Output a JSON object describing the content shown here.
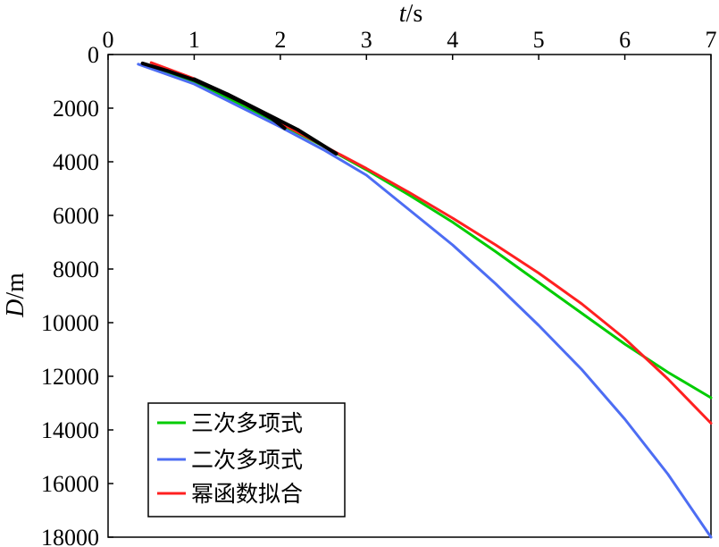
{
  "chart_data": {
    "type": "line",
    "xlabel_var": "t",
    "xlabel_unit": "/s",
    "ylabel_var": "D",
    "ylabel_unit": "/m",
    "xlim": [
      0,
      7
    ],
    "ylim": [
      0,
      18000
    ],
    "y_inverted": true,
    "x_axis_position": "top",
    "grid": false,
    "legend_position": "bottom-left",
    "x_ticks": [
      0,
      1,
      2,
      3,
      4,
      5,
      6,
      7
    ],
    "y_ticks": [
      0,
      2000,
      4000,
      6000,
      8000,
      10000,
      12000,
      14000,
      16000,
      18000
    ],
    "series": [
      {
        "name": "三次多项式",
        "color": "#00cc00",
        "x": [
          0.4,
          1.0,
          1.5,
          2.0,
          2.5,
          3.0,
          3.5,
          4.0,
          4.5,
          5.0,
          5.5,
          6.0,
          6.5,
          7.0
        ],
        "y": [
          340,
          1050,
          1800,
          2600,
          3420,
          4300,
          5250,
          6250,
          7350,
          8500,
          9650,
          10800,
          11850,
          12800
        ]
      },
      {
        "name": "二次多项式",
        "color": "#4d6df3",
        "x": [
          0.35,
          1.0,
          1.5,
          2.0,
          2.5,
          3.0,
          3.5,
          4.0,
          4.5,
          5.0,
          5.5,
          6.0,
          6.5,
          7.0
        ],
        "y": [
          360,
          1100,
          1900,
          2700,
          3550,
          4500,
          5800,
          7100,
          8550,
          10100,
          11750,
          13600,
          15650,
          18000
        ]
      },
      {
        "name": "幂函数拟合",
        "color": "#ff2020",
        "x": [
          0.5,
          1.0,
          1.5,
          2.0,
          2.5,
          3.0,
          3.5,
          4.0,
          4.5,
          5.0,
          5.5,
          6.0,
          6.5,
          7.0
        ],
        "y": [
          300,
          900,
          1700,
          2550,
          3400,
          4250,
          5150,
          6100,
          7100,
          8150,
          9300,
          10600,
          12100,
          13750
        ]
      },
      {
        "name": "",
        "color": "#000000",
        "x": [
          0.4,
          0.7,
          1.0,
          1.3,
          1.6,
          1.9,
          2.05
        ],
        "y": [
          330,
          620,
          950,
          1380,
          1850,
          2380,
          2750
        ]
      },
      {
        "name": "",
        "color": "#000000",
        "x": [
          1.0,
          1.4,
          1.8,
          2.2,
          2.6,
          2.65
        ],
        "y": [
          920,
          1500,
          2150,
          2800,
          3600,
          3700
        ]
      }
    ],
    "legend_labels": [
      "三次多项式",
      "二次多项式",
      "幂函数拟合"
    ]
  }
}
